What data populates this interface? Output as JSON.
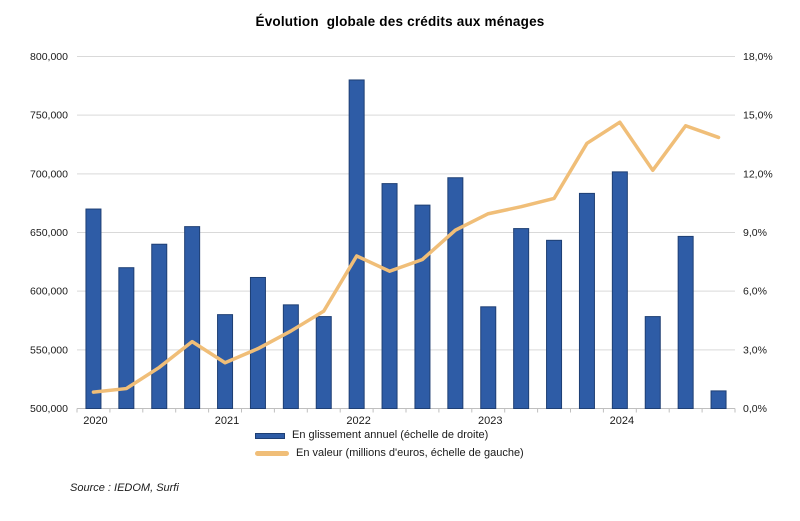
{
  "source": "Source : IEDOM, Surfi",
  "colors": {
    "bar_fill": "#2E5CA6",
    "bar_border": "#1E3F74",
    "line": "#F0BE78",
    "gridline": "#D9D9D9",
    "axis_line": "#BFBFBF",
    "text": "#1A1A1A"
  },
  "chart_data": {
    "type": "bar",
    "subtype": "combo bar + line, dual axis",
    "title": "Évolution  globale des crédits aux ménages",
    "grid": true,
    "legend_position": "bottom",
    "categories": [
      "2020-T1",
      "2020-T2",
      "2020-T3",
      "2020-T4",
      "2021-T1",
      "2021-T2",
      "2021-T3",
      "2021-T4",
      "2022-T1",
      "2022-T2",
      "2022-T3",
      "2022-T4",
      "2023-T1",
      "2023-T2",
      "2023-T3",
      "2023-T4",
      "2024-T1",
      "2024-T2",
      "2024-T3",
      "2024-T4"
    ],
    "x_tick_labels": [
      "2020",
      "2021",
      "2022",
      "2023",
      "2024"
    ],
    "x_tick_positions": [
      0,
      4,
      8,
      12,
      16
    ],
    "series": [
      {
        "name": "En glissement annuel (échelle de droite)",
        "type": "bar",
        "axis": "right",
        "unit": "%",
        "values": [
          10.2,
          7.2,
          8.4,
          9.3,
          4.8,
          6.7,
          5.3,
          4.7,
          16.8,
          11.5,
          10.4,
          11.8,
          5.2,
          9.2,
          8.6,
          11.0,
          12.1,
          4.7,
          8.8,
          0.9
        ]
      },
      {
        "name": "En valeur (millions d'euros, échelle de gauche)",
        "type": "line",
        "axis": "left",
        "unit": "millions d'euros",
        "values": [
          514000,
          517000,
          535000,
          557000,
          539000,
          551000,
          566000,
          583000,
          630000,
          617000,
          627000,
          652000,
          666000,
          672000,
          679000,
          726000,
          744000,
          703000,
          741000,
          731000
        ]
      }
    ],
    "left_axis": {
      "min": 500000,
      "max": 800000,
      "tick_step": 50000,
      "tick_labels": [
        "500,000",
        "550,000",
        "600,000",
        "650,000",
        "700,000",
        "750,000",
        "800,000"
      ]
    },
    "right_axis": {
      "min": 0,
      "max": 18,
      "tick_step": 3,
      "tick_labels": [
        "0,0%",
        "3,0%",
        "6,0%",
        "9,0%",
        "12,0%",
        "15,0%",
        "18,0%"
      ]
    }
  }
}
